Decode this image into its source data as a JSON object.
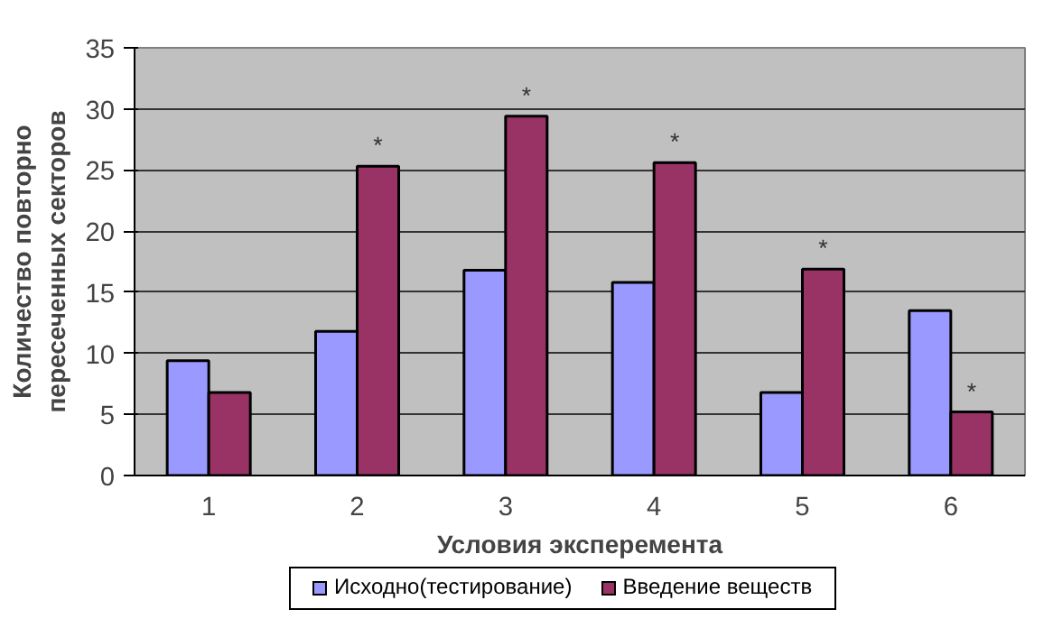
{
  "chart_data": {
    "type": "bar",
    "xlabel": "Условия эксперемента",
    "ylabel": "Количество повторно\nпересеченных секторов",
    "categories": [
      "1",
      "2",
      "3",
      "4",
      "5",
      "6"
    ],
    "series": [
      {
        "name": "Исходно(тестирование)",
        "color": "#9999ff",
        "values": [
          9.4,
          11.8,
          16.8,
          15.8,
          6.8,
          13.5
        ]
      },
      {
        "name": "Введение веществ",
        "color": "#993366",
        "values": [
          6.8,
          25.3,
          29.4,
          25.6,
          16.9,
          5.2
        ]
      }
    ],
    "ylim": [
      0,
      35
    ],
    "yticks": [
      0,
      5,
      10,
      15,
      20,
      25,
      30,
      35
    ],
    "grid": "y",
    "legend": "bottom",
    "annotations": [
      {
        "text": "*",
        "x": "2",
        "y": 25.3
      },
      {
        "text": "*",
        "x": "3",
        "y": 29.4
      },
      {
        "text": "*",
        "x": "4",
        "y": 25.6
      },
      {
        "text": "*",
        "x": "5",
        "y": 16.9
      },
      {
        "text": "*",
        "x": "6",
        "y": 5.2
      }
    ]
  }
}
